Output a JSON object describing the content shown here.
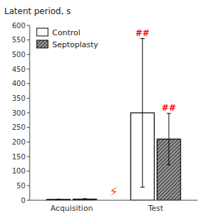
{
  "chart_data": {
    "type": "bar",
    "title": "",
    "ylabel": "Latent period, s",
    "categories": [
      "Acquisition",
      "Test"
    ],
    "series": [
      {
        "name": "Control",
        "color": "#ffffff",
        "values": [
          3,
          300
        ],
        "errors": [
          1,
          255
        ]
      },
      {
        "name": "Septoplasty",
        "color": "#909090",
        "values": [
          4,
          210
        ],
        "errors": [
          1,
          88
        ]
      }
    ],
    "ylim": [
      0,
      600
    ],
    "yticks": [
      0,
      50,
      100,
      150,
      200,
      250,
      300,
      350,
      400,
      450,
      500,
      550,
      600
    ],
    "grid": false,
    "legend": "upper left",
    "annotations": [
      {
        "text": "##",
        "color": "#ff0000"
      },
      {
        "text": "##",
        "color": "#ff0000"
      },
      {
        "text": "⚡",
        "color": "#FF4400"
      }
    ]
  }
}
